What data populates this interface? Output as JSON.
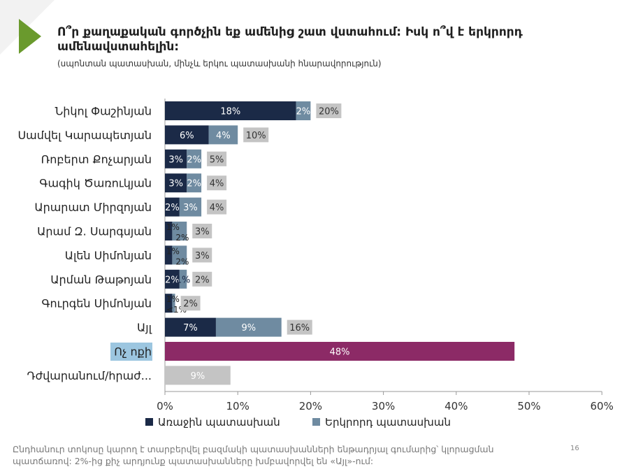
{
  "title": "Ո՞ր քաղաքական գործչին եք ամենից շատ վստահում: Իսկ ո՞վ է երկրորդ ամենավստահելին:",
  "subtitle": "(սպոնտան պատասխան, մինչև երկու պատասխանի հնարավորություն)",
  "footnote": "Ընդհանուր տոկոսը կարող է տարբերվել բազմակի պատասխանների ենթադրյալ գումարից՝ կլորացման պատճառով: 2%-ից քիչ արդյունք պատասխանները խմբավորվել են «Այլ»-ում:",
  "page_number": "16",
  "colors": {
    "first": "#1b2a47",
    "second": "#6f8ba1",
    "total": "#c4c4c4",
    "none": "#8c2a66",
    "none_label_bg": "#9cc6e0",
    "accent": "#6a9a2d"
  },
  "chart_data": {
    "type": "bar",
    "orientation": "horizontal",
    "stacked": true,
    "categories": [
      "Նիկոլ Փաշինյան",
      "Սամվել Կարապետյան",
      "Ռոբերտ Քոչարյան",
      "Գագիկ Ծառուկյան",
      "Արարատ Միրզոյան",
      "Արամ Զ. Սարգսյան",
      "Ալեն Սիմոնյան",
      "Արման Թաթոյան",
      "Գուրգեն Սիմոնյան",
      "Այլ",
      "Ոչ ոքի",
      "Դժվարանում/հրաժ..."
    ],
    "series": [
      {
        "name": "Առաջին պատասխան",
        "values": [
          18,
          6,
          3,
          3,
          2,
          1,
          1,
          2,
          1,
          7,
          null,
          null
        ],
        "labels": [
          "18%",
          "6%",
          "3%",
          "3%",
          "2%",
          "1%",
          "1%",
          "2%",
          "1%",
          "7%",
          "",
          ""
        ]
      },
      {
        "name": "Երկրորդ պատասխան",
        "values": [
          2,
          4,
          2,
          2,
          3,
          2,
          2,
          1,
          0.4,
          9,
          null,
          null
        ],
        "labels": [
          "2%",
          "4%",
          "2%",
          "2%",
          "3%",
          "2%",
          "2%",
          "1%",
          "<1%",
          "9%",
          "",
          ""
        ]
      }
    ],
    "totals": {
      "values": [
        20,
        10,
        5,
        4,
        4,
        3,
        3,
        2,
        2,
        16,
        null,
        null
      ],
      "labels": [
        "20%",
        "10%",
        "5%",
        "4%",
        "4%",
        "3%",
        "3%",
        "2%",
        "2%",
        "16%",
        "",
        ""
      ]
    },
    "single_bars": [
      {
        "category": "Ոչ ոքի",
        "value": 48,
        "label": "48%",
        "style": "none"
      },
      {
        "category": "Դժվարանում/հրաժ...",
        "value": 9,
        "label": "9%",
        "style": "total"
      }
    ],
    "highlighted_category": "Ոչ ոքի",
    "x_ticks": [
      0,
      10,
      20,
      30,
      40,
      50,
      60
    ],
    "x_tick_labels": [
      "0%",
      "10%",
      "20%",
      "30%",
      "40%",
      "50%",
      "60%"
    ],
    "xlim": [
      0,
      60
    ],
    "legend": [
      "Առաջին պատասխան",
      "Երկրորդ պատասխան"
    ],
    "legend_position": "bottom"
  }
}
